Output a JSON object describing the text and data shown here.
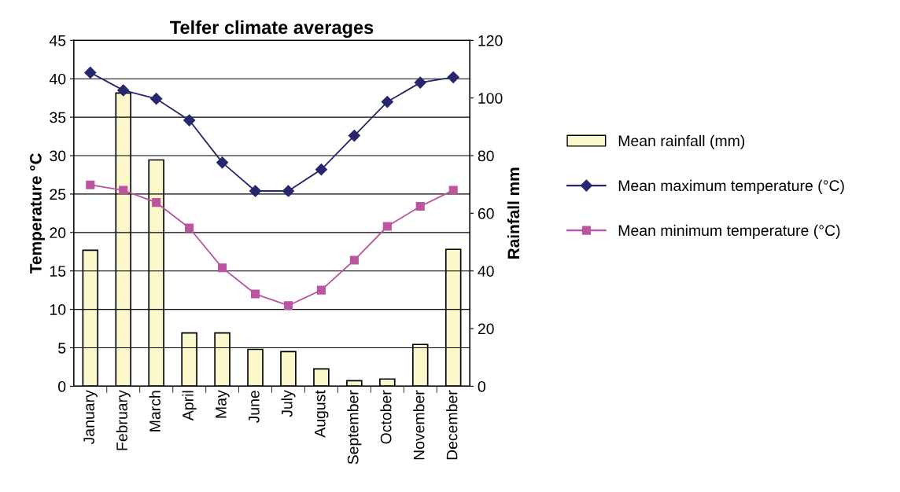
{
  "chart_data": {
    "type": "bar",
    "title": "Telfer climate averages",
    "ylabel": "Temperature °C",
    "y2label": "Rainfall mm",
    "categories": [
      "January",
      "February",
      "March",
      "April",
      "May",
      "June",
      "July",
      "August",
      "September",
      "October",
      "November",
      "December"
    ],
    "series": [
      {
        "name": "Mean rainfall (mm)",
        "axis": "y2",
        "color": "#fbf8cc",
        "values": [
          47.2,
          101.7,
          78.5,
          18.5,
          18.5,
          12.8,
          12.0,
          6.0,
          1.9,
          2.5,
          14.5,
          47.5
        ]
      },
      {
        "name": "Mean maximum temperature (°C)",
        "type": "line",
        "marker": "diamond",
        "color": "#26276e",
        "values": [
          40.8,
          38.5,
          37.4,
          34.6,
          29.1,
          25.4,
          25.4,
          28.2,
          32.6,
          37.0,
          39.5,
          40.2
        ]
      },
      {
        "name": "Mean minimum temperature (°C)",
        "type": "line",
        "marker": "square",
        "color": "#bb55a0",
        "values": [
          26.2,
          25.5,
          23.9,
          20.6,
          15.4,
          12.0,
          10.5,
          12.5,
          16.4,
          20.8,
          23.4,
          25.5
        ]
      }
    ],
    "ylim": [
      0,
      45
    ],
    "yticks": [
      0,
      5,
      10,
      15,
      20,
      25,
      30,
      35,
      40,
      45
    ],
    "y2lim": [
      0,
      120
    ],
    "y2ticks": [
      0,
      20,
      40,
      60,
      80,
      100,
      120
    ],
    "grid": "y",
    "legend": "right"
  }
}
